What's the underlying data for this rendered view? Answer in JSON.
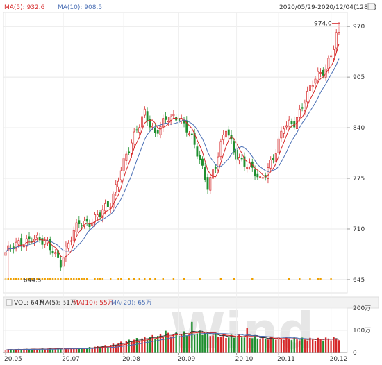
{
  "chart_data": [
    {
      "type": "candlestick",
      "legend": [
        {
          "label": "MA(5): 932.6",
          "color": "#d62728"
        },
        {
          "label": "MA(10): 908.5",
          "color": "#4a6fb5"
        }
      ],
      "date_range": "2020/05/29-2020/12/04(128日)",
      "y_ticks": [
        645,
        710,
        775,
        840,
        905,
        970
      ],
      "ylim": [
        628,
        988
      ],
      "x_ticks": [
        {
          "label": "20.05",
          "i": 0
        },
        {
          "label": "20.07",
          "i": 22
        },
        {
          "label": "20.08",
          "i": 45
        },
        {
          "label": "20.09",
          "i": 66
        },
        {
          "label": "20.10",
          "i": 88
        },
        {
          "label": "20.11",
          "i": 104
        },
        {
          "label": "20.12",
          "i": 124
        }
      ],
      "annotations": [
        {
          "text": "974.0",
          "i": 127,
          "value": 974.0
        },
        {
          "text": "644.5",
          "i": 1,
          "value": 644.5
        }
      ],
      "anchors": [
        [
          0,
          680
        ],
        [
          5,
          690
        ],
        [
          10,
          700
        ],
        [
          18,
          684
        ],
        [
          21,
          668
        ],
        [
          24,
          690
        ],
        [
          28,
          718
        ],
        [
          32,
          720
        ],
        [
          36,
          728
        ],
        [
          40,
          742
        ],
        [
          44,
          790
        ],
        [
          48,
          818
        ],
        [
          53,
          862
        ],
        [
          57,
          832
        ],
        [
          62,
          852
        ],
        [
          66,
          856
        ],
        [
          70,
          832
        ],
        [
          74,
          798
        ],
        [
          77,
          768
        ],
        [
          80,
          792
        ],
        [
          84,
          838
        ],
        [
          87,
          812
        ],
        [
          90,
          798
        ],
        [
          93,
          788
        ],
        [
          97,
          772
        ],
        [
          100,
          790
        ],
        [
          103,
          810
        ],
        [
          106,
          840
        ],
        [
          110,
          848
        ],
        [
          114,
          876
        ],
        [
          118,
          902
        ],
        [
          122,
          918
        ],
        [
          125,
          946
        ],
        [
          127,
          972
        ]
      ],
      "markers_i": [
        0,
        1,
        2,
        3,
        4,
        5,
        6,
        7,
        8,
        9,
        10,
        11,
        12,
        13,
        14,
        15,
        16,
        17,
        18,
        19,
        20,
        21,
        22,
        23,
        24,
        25,
        26,
        27,
        28,
        29,
        30,
        31,
        34,
        35,
        36,
        37,
        40,
        43,
        44,
        47,
        49,
        51,
        53,
        55,
        57,
        60,
        64,
        68,
        74,
        82,
        87,
        94,
        108,
        112,
        116,
        119,
        120,
        124
      ],
      "n": 128
    },
    {
      "type": "bar",
      "legend": [
        {
          "label": "VOL: 64万",
          "color": "#333333"
        },
        {
          "label": "MA(5): 51万",
          "color": "#333333"
        },
        {
          "label": "MA(10): 55万",
          "color": "#d62728"
        },
        {
          "label": "MA(20): 65万",
          "color": "#4a6fb5"
        }
      ],
      "y_ticks": [
        {
          "label": "200万",
          "value": 200
        },
        {
          "label": "100万",
          "value": 100
        },
        {
          "label": "0",
          "value": 0
        }
      ],
      "ylim": [
        0,
        200
      ],
      "volume_profile": [
        [
          0,
          14
        ],
        [
          30,
          20
        ],
        [
          40,
          34
        ],
        [
          48,
          56
        ],
        [
          58,
          76
        ],
        [
          66,
          86
        ],
        [
          74,
          90
        ],
        [
          84,
          72
        ],
        [
          90,
          74
        ],
        [
          100,
          64
        ],
        [
          110,
          62
        ],
        [
          118,
          60
        ],
        [
          127,
          64
        ]
      ]
    }
  ],
  "watermark": "Wind"
}
